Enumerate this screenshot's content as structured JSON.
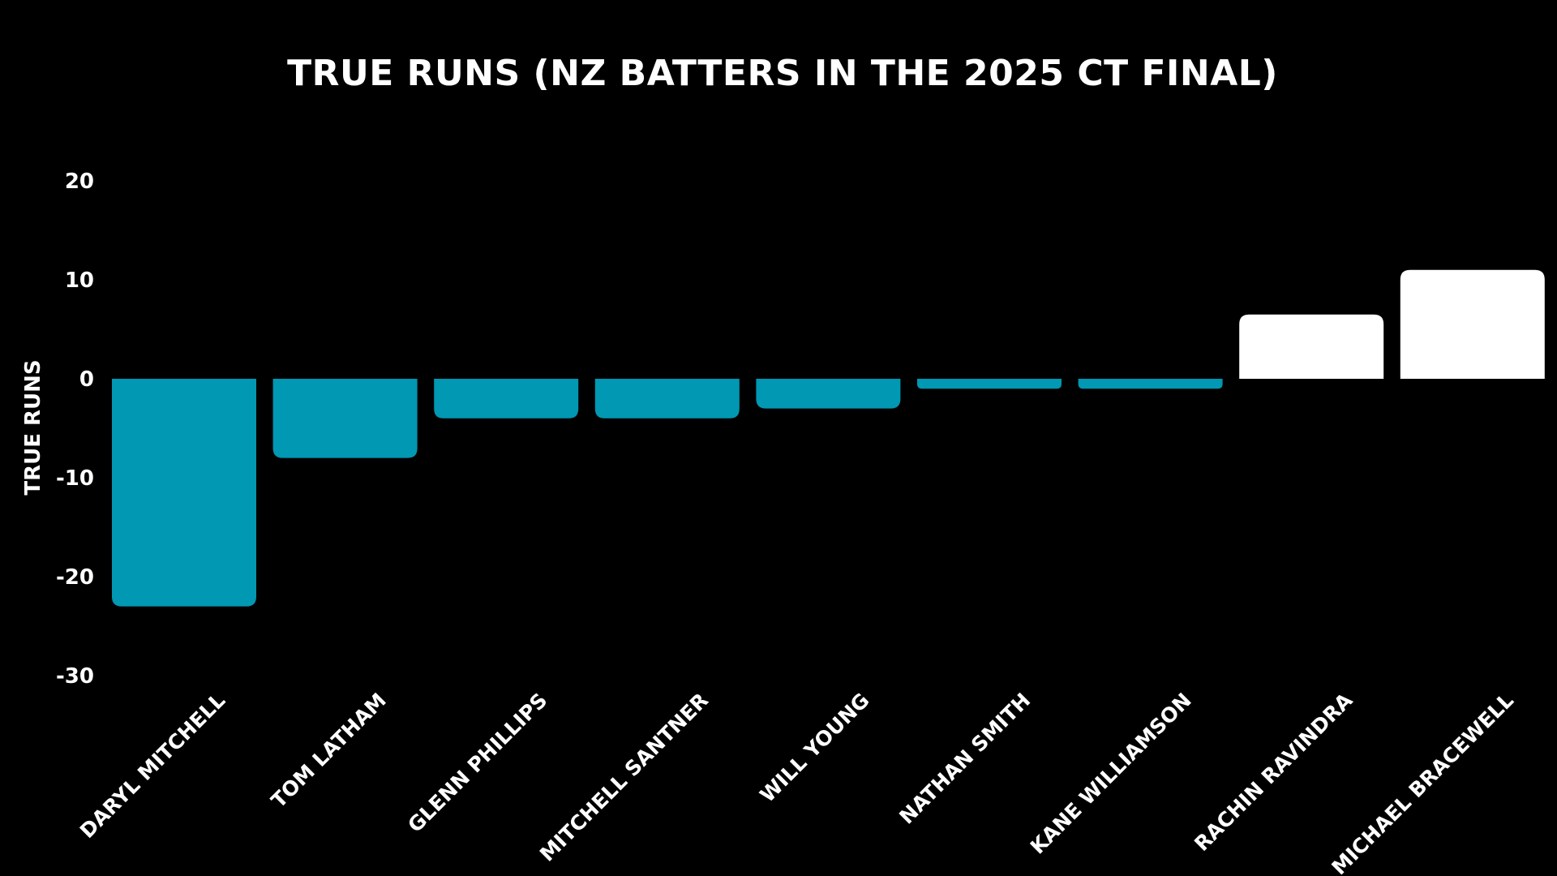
{
  "chart_data": {
    "type": "bar",
    "title": "TRUE RUNS (NZ BATTERS IN THE 2025 CT FINAL)",
    "xlabel": "",
    "ylabel": "TRUE RUNS",
    "ylim": [
      -30,
      20
    ],
    "yticks": [
      20,
      10,
      0,
      -10,
      -20,
      -30
    ],
    "ytick_labels": [
      "20",
      "10",
      "0",
      "-10",
      "-20",
      "-30"
    ],
    "categories": [
      "DARYL MITCHELL",
      "TOM LATHAM",
      "GLENN PHILLIPS",
      "MITCHELL SANTNER",
      "WILL YOUNG",
      "NATHAN SMITH",
      "KANE WILLIAMSON",
      "RACHIN RAVINDRA",
      "MICHAEL BRACEWELL"
    ],
    "values": [
      -23,
      -8,
      -4,
      -4,
      -3,
      -1,
      -1,
      6.5,
      11
    ],
    "grid": false,
    "legend": "none",
    "colors": {
      "background": "#000000",
      "negative": "#0098b3",
      "positive": "#ffffff",
      "text": "#ffffff"
    }
  }
}
